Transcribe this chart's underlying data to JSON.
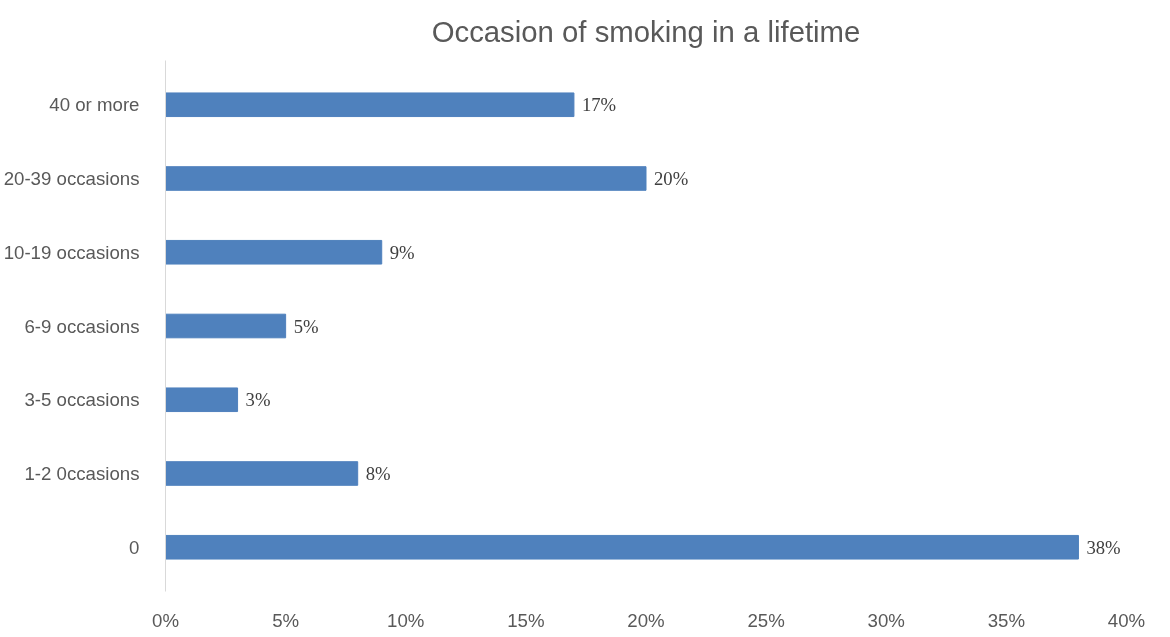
{
  "chart_data": {
    "type": "bar",
    "orientation": "horizontal",
    "title": "Occasion of smoking in a lifetime",
    "categories": [
      "40 or more",
      "20-39 occasions",
      "10-19 occasions",
      "6-9 occasions",
      "3-5 occasions",
      "1-2 0ccasions",
      "0"
    ],
    "values": [
      17,
      20,
      9,
      5,
      3,
      8,
      38
    ],
    "value_labels": [
      "17%",
      "20%",
      "9%",
      "5%",
      "3%",
      "8%",
      "38%"
    ],
    "color": "#4f81bd",
    "xlim": [
      0,
      40
    ],
    "xticks": [
      {
        "value": 0,
        "label": "0%"
      },
      {
        "value": 5,
        "label": "5%"
      },
      {
        "value": 10,
        "label": "10%"
      },
      {
        "value": 15,
        "label": "15%"
      },
      {
        "value": 20,
        "label": "20%"
      },
      {
        "value": 25,
        "label": "25%"
      },
      {
        "value": 30,
        "label": "30%"
      },
      {
        "value": 35,
        "label": "35%"
      },
      {
        "value": 40,
        "label": "40%"
      }
    ],
    "grid": false
  }
}
